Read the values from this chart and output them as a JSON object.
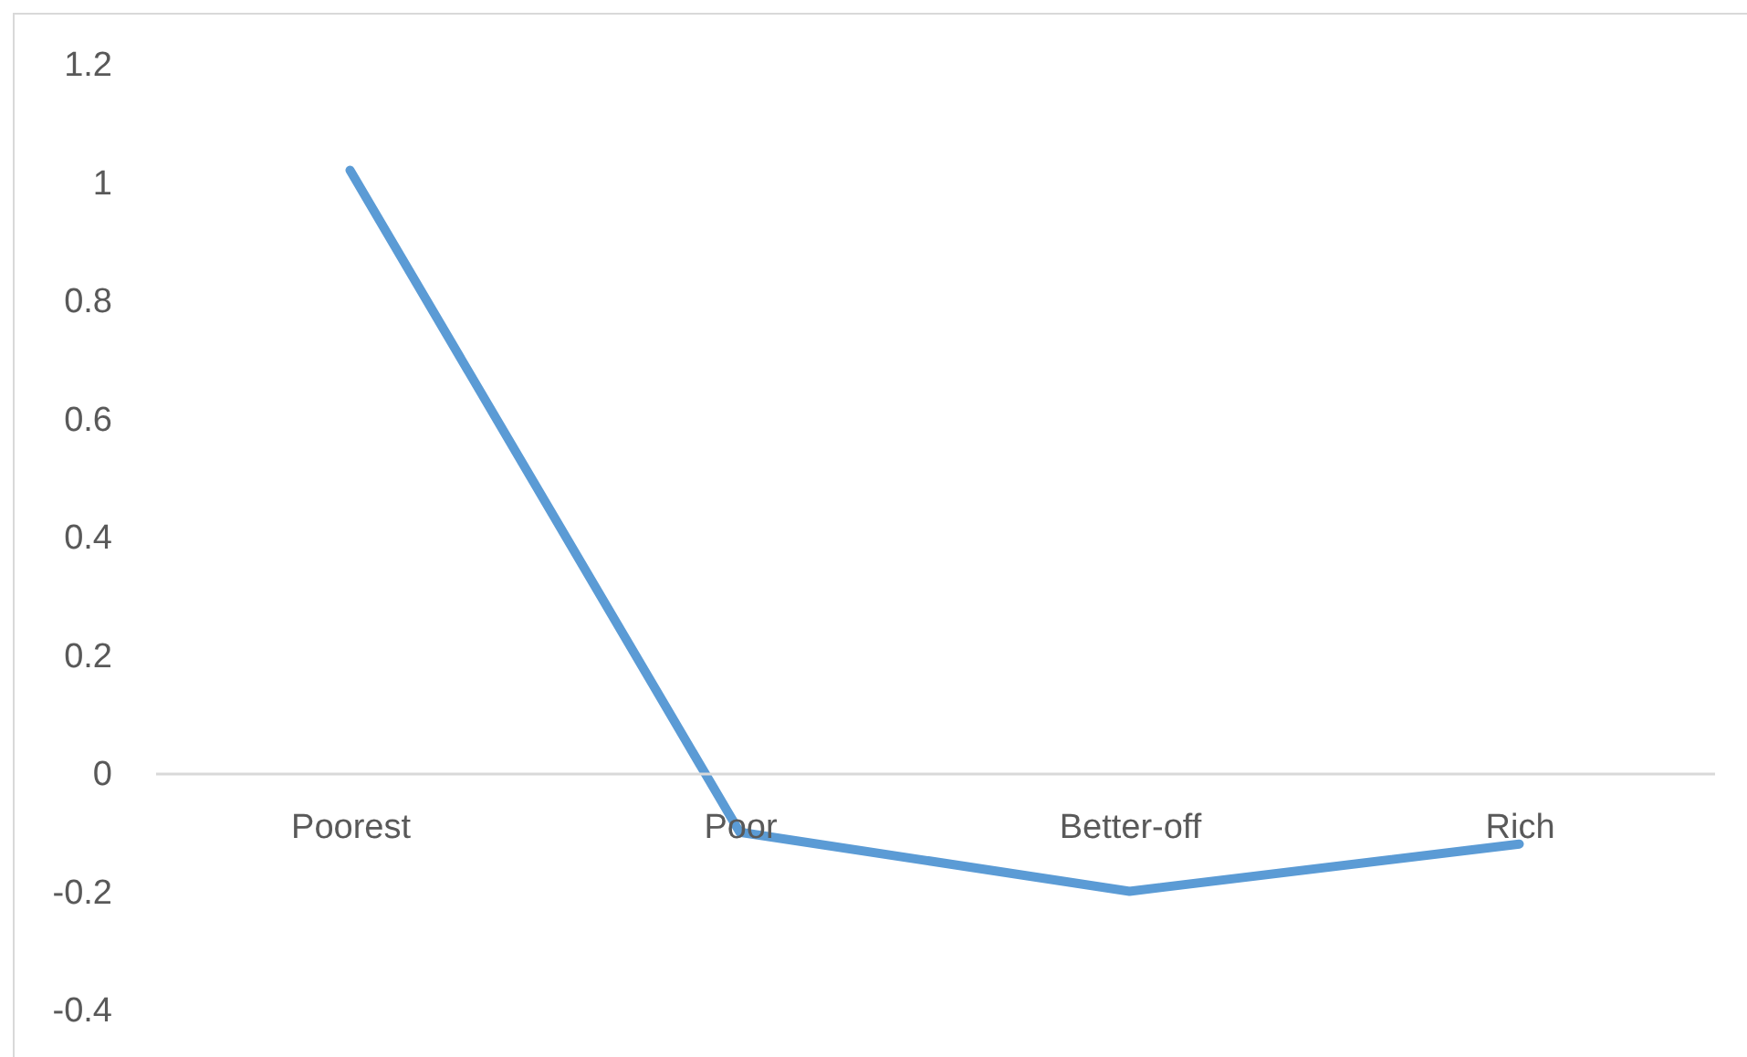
{
  "chart_data": {
    "type": "line",
    "categories": [
      "Poorest",
      "Poor",
      "Better-off",
      "Rich"
    ],
    "series": [
      {
        "color": "#5b9bd5",
        "values": [
          1.02,
          -0.1,
          -0.2,
          -0.12
        ]
      }
    ],
    "ylim": [
      -0.4,
      1.2
    ],
    "yticks": [
      -0.4,
      -0.2,
      0,
      0.2,
      0.4,
      0.6,
      0.8,
      1,
      1.2
    ]
  }
}
